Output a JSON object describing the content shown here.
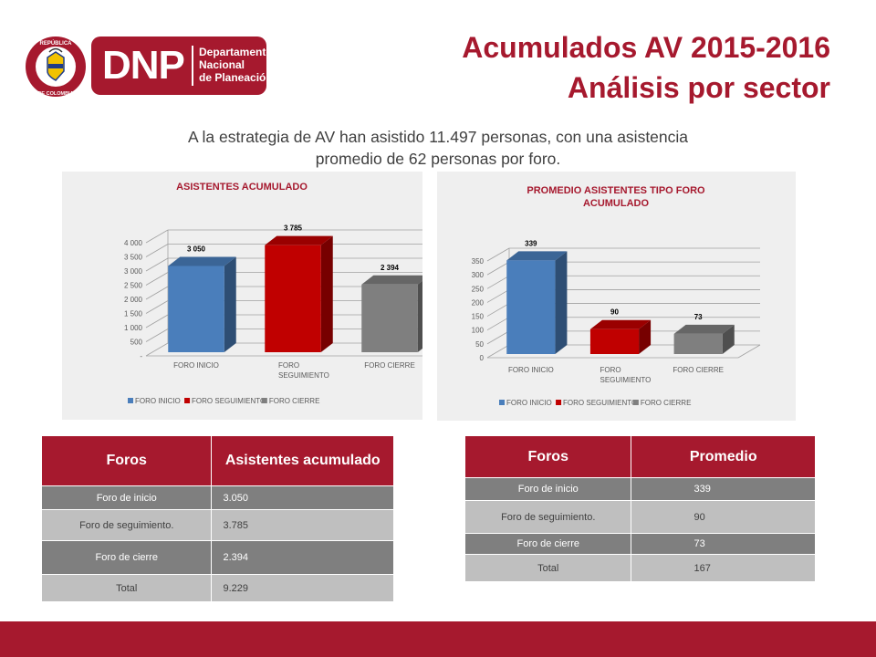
{
  "logo": {
    "letters": "DNP",
    "line1": "Departamento",
    "line2": "Nacional",
    "line3": "de Planeación",
    "seal_top": "REPÚBLICA",
    "seal_bottom": "DE COLOMBIA"
  },
  "header": {
    "title_line1": "Acumulados AV 2015-2016",
    "title_line2": "Análisis por sector"
  },
  "intro": {
    "line1": "A la estrategia de AV han asistido 11.497 personas, con una asistencia",
    "line2": "promedio de 62 personas por foro."
  },
  "colors": {
    "brand": "#a6192e",
    "series_blue": "#4a7ebb",
    "series_red": "#c00000",
    "series_gray": "#7f7f7f"
  },
  "chart_data": [
    {
      "type": "bar",
      "title": "ASISTENTES ACUMULADO",
      "title_lines": [
        "ASISTENTES ACUMULADO"
      ],
      "categories": [
        "FORO INICIO",
        "FORO SEGUIMIENTO",
        "FORO CIERRE"
      ],
      "category_lines": [
        [
          "FORO INICIO"
        ],
        [
          "FORO",
          "SEGUIMIENTO"
        ],
        [
          "FORO CIERRE"
        ]
      ],
      "values": [
        3050,
        3785,
        2394
      ],
      "data_labels": [
        "3 050",
        "3 785",
        "2 394"
      ],
      "yticks": [
        0,
        500,
        1000,
        1500,
        2000,
        2500,
        3000,
        3500,
        4000
      ],
      "ytick_labels": [
        "-",
        "500",
        "1 000",
        "1 500",
        "2 000",
        "2 500",
        "3 000",
        "3 500",
        "4 000"
      ],
      "ylim": [
        0,
        4000
      ],
      "grid": true,
      "legend": [
        "FORO INICIO",
        "FORO SEGUIMIENTO",
        "FORO CIERRE"
      ],
      "legend_position": "bottom",
      "colors": [
        "#4a7ebb",
        "#c00000",
        "#7f7f7f"
      ]
    },
    {
      "type": "bar",
      "title": "PROMEDIO ASISTENTES TIPO FORO ACUMULADO",
      "title_lines": [
        "PROMEDIO ASISTENTES TIPO FORO",
        "ACUMULADO"
      ],
      "categories": [
        "FORO INICIO",
        "FORO SEGUIMIENTO",
        "FORO CIERRE"
      ],
      "category_lines": [
        [
          "FORO INICIO"
        ],
        [
          "FORO",
          "SEGUIMIENTO"
        ],
        [
          "FORO CIERRE"
        ]
      ],
      "values": [
        339,
        90,
        73
      ],
      "data_labels": [
        "339",
        "90",
        "73"
      ],
      "yticks": [
        0,
        50,
        100,
        150,
        200,
        250,
        300,
        350
      ],
      "ytick_labels": [
        "0",
        "50",
        "100",
        "150",
        "200",
        "250",
        "300",
        "350"
      ],
      "ylim": [
        0,
        350
      ],
      "grid": true,
      "legend": [
        "FORO INICIO",
        "FORO SEGUIMIENTO",
        "FORO CIERRE"
      ],
      "legend_position": "bottom",
      "colors": [
        "#4a7ebb",
        "#c00000",
        "#7f7f7f"
      ]
    }
  ],
  "table_left": {
    "headers": [
      "Foros",
      "Asistentes acumulado"
    ],
    "rows": [
      [
        "Foro de inicio",
        "3.050"
      ],
      [
        "Foro de seguimiento.",
        "3.785"
      ],
      [
        "Foro de cierre",
        "2.394"
      ],
      [
        "Total",
        "9.229"
      ]
    ]
  },
  "table_right": {
    "headers": [
      "Foros",
      "Promedio"
    ],
    "rows": [
      [
        "Foro de inicio",
        "339"
      ],
      [
        "Foro de seguimiento.",
        "90"
      ],
      [
        "Foro de cierre",
        "73"
      ],
      [
        "Total",
        "167"
      ]
    ]
  }
}
